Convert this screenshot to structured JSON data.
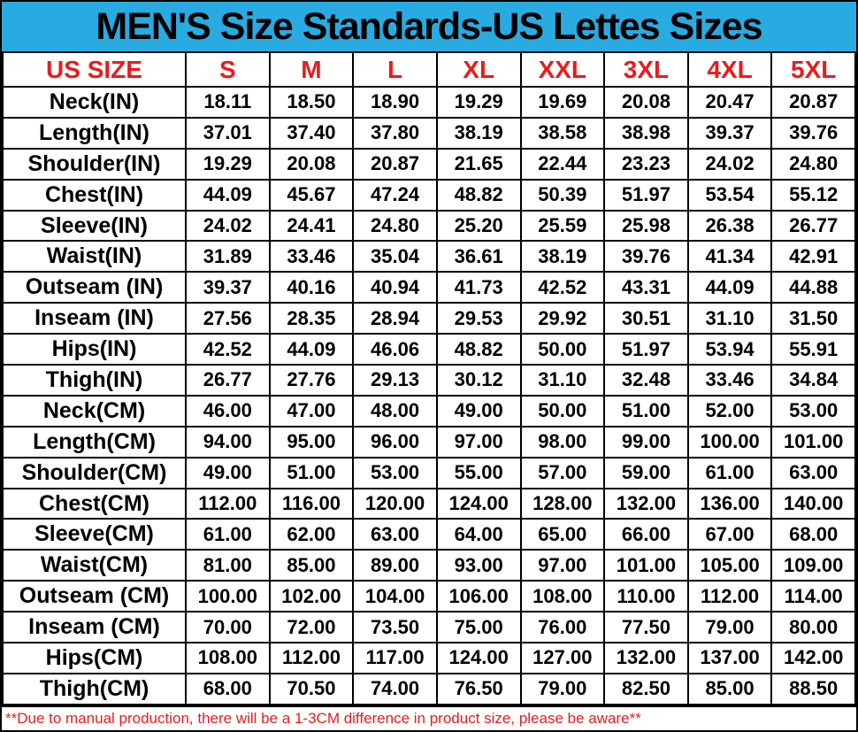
{
  "title": "MEN'S Size Standards-US Lettes Sizes",
  "colors": {
    "title_bg": "#29abe2",
    "accent_red": "#e81c1c",
    "grid": "#000000",
    "text": "#000000"
  },
  "footer": {
    "note": "**Due to manual production, there will be a 1-3CM difference in product size, please be aware**"
  },
  "chart_data": {
    "type": "table",
    "title": "MEN'S Size Standards-US Lettes Sizes",
    "columns": [
      "US SIZE",
      "S",
      "M",
      "L",
      "XL",
      "XXL",
      "3XL",
      "4XL",
      "5XL"
    ],
    "rows": [
      {
        "label": "Neck(IN)",
        "values": [
          "18.11",
          "18.50",
          "18.90",
          "19.29",
          "19.69",
          "20.08",
          "20.47",
          "20.87"
        ]
      },
      {
        "label": "Length(IN)",
        "values": [
          "37.01",
          "37.40",
          "37.80",
          "38.19",
          "38.58",
          "38.98",
          "39.37",
          "39.76"
        ]
      },
      {
        "label": "Shoulder(IN)",
        "values": [
          "19.29",
          "20.08",
          "20.87",
          "21.65",
          "22.44",
          "23.23",
          "24.02",
          "24.80"
        ]
      },
      {
        "label": "Chest(IN)",
        "values": [
          "44.09",
          "45.67",
          "47.24",
          "48.82",
          "50.39",
          "51.97",
          "53.54",
          "55.12"
        ]
      },
      {
        "label": "Sleeve(IN)",
        "values": [
          "24.02",
          "24.41",
          "24.80",
          "25.20",
          "25.59",
          "25.98",
          "26.38",
          "26.77"
        ]
      },
      {
        "label": "Waist(IN)",
        "values": [
          "31.89",
          "33.46",
          "35.04",
          "36.61",
          "38.19",
          "39.76",
          "41.34",
          "42.91"
        ]
      },
      {
        "label": "Outseam (IN)",
        "values": [
          "39.37",
          "40.16",
          "40.94",
          "41.73",
          "42.52",
          "43.31",
          "44.09",
          "44.88"
        ]
      },
      {
        "label": "Inseam (IN)",
        "values": [
          "27.56",
          "28.35",
          "28.94",
          "29.53",
          "29.92",
          "30.51",
          "31.10",
          "31.50"
        ]
      },
      {
        "label": "Hips(IN)",
        "values": [
          "42.52",
          "44.09",
          "46.06",
          "48.82",
          "50.00",
          "51.97",
          "53.94",
          "55.91"
        ]
      },
      {
        "label": "Thigh(IN)",
        "values": [
          "26.77",
          "27.76",
          "29.13",
          "30.12",
          "31.10",
          "32.48",
          "33.46",
          "34.84"
        ]
      },
      {
        "label": "Neck(CM)",
        "values": [
          "46.00",
          "47.00",
          "48.00",
          "49.00",
          "50.00",
          "51.00",
          "52.00",
          "53.00"
        ]
      },
      {
        "label": "Length(CM)",
        "values": [
          "94.00",
          "95.00",
          "96.00",
          "97.00",
          "98.00",
          "99.00",
          "100.00",
          "101.00"
        ]
      },
      {
        "label": "Shoulder(CM)",
        "values": [
          "49.00",
          "51.00",
          "53.00",
          "55.00",
          "57.00",
          "59.00",
          "61.00",
          "63.00"
        ]
      },
      {
        "label": "Chest(CM)",
        "values": [
          "112.00",
          "116.00",
          "120.00",
          "124.00",
          "128.00",
          "132.00",
          "136.00",
          "140.00"
        ]
      },
      {
        "label": "Sleeve(CM)",
        "values": [
          "61.00",
          "62.00",
          "63.00",
          "64.00",
          "65.00",
          "66.00",
          "67.00",
          "68.00"
        ]
      },
      {
        "label": "Waist(CM)",
        "values": [
          "81.00",
          "85.00",
          "89.00",
          "93.00",
          "97.00",
          "101.00",
          "105.00",
          "109.00"
        ]
      },
      {
        "label": "Outseam (CM)",
        "values": [
          "100.00",
          "102.00",
          "104.00",
          "106.00",
          "108.00",
          "110.00",
          "112.00",
          "114.00"
        ]
      },
      {
        "label": "Inseam (CM)",
        "values": [
          "70.00",
          "72.00",
          "73.50",
          "75.00",
          "76.00",
          "77.50",
          "79.00",
          "80.00"
        ]
      },
      {
        "label": "Hips(CM)",
        "values": [
          "108.00",
          "112.00",
          "117.00",
          "124.00",
          "127.00",
          "132.00",
          "137.00",
          "142.00"
        ]
      },
      {
        "label": "Thigh(CM)",
        "values": [
          "68.00",
          "70.50",
          "74.00",
          "76.50",
          "79.00",
          "82.50",
          "85.00",
          "88.50"
        ]
      }
    ]
  }
}
